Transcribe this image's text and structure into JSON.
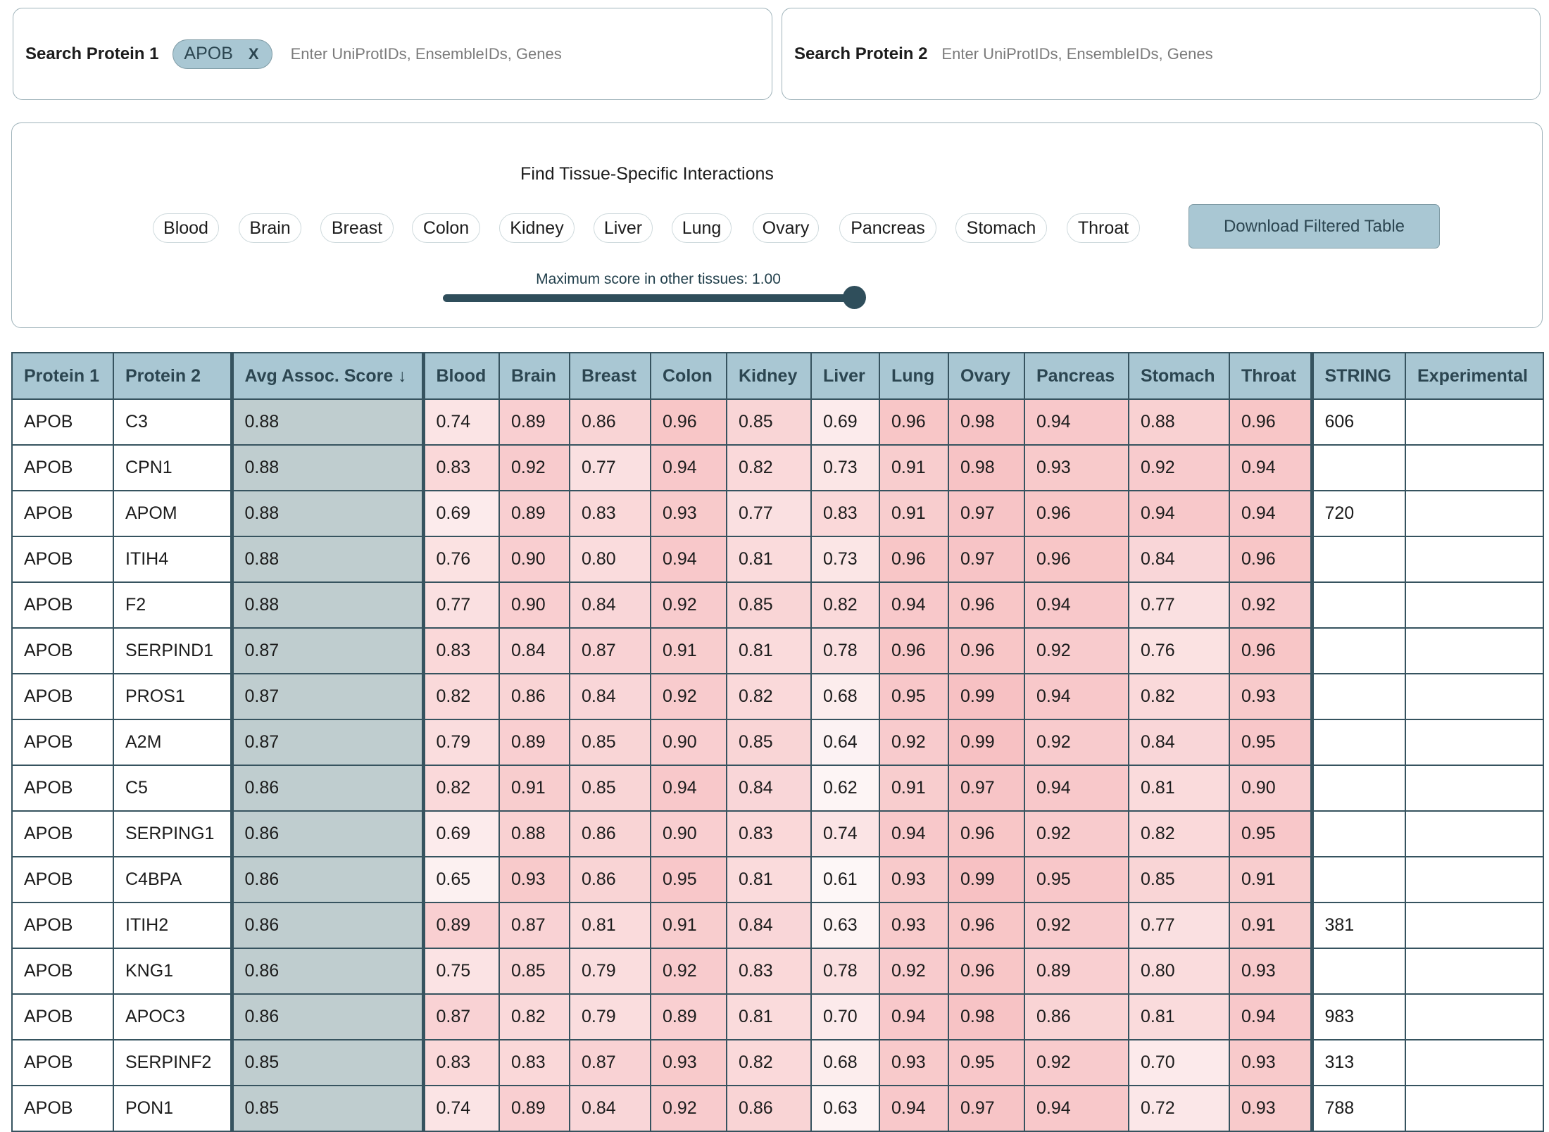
{
  "search1": {
    "label": "Search Protein 1",
    "chip": "APOB",
    "chip_remove": "X",
    "placeholder": "Enter UniProtIDs, EnsembleIDs, Genes",
    "value": ""
  },
  "search2": {
    "label": "Search Protein 2",
    "placeholder": "Enter UniProtIDs, EnsembleIDs, Genes",
    "value": ""
  },
  "filter": {
    "title": "Find Tissue-Specific Interactions",
    "tissues": [
      "Blood",
      "Brain",
      "Breast",
      "Colon",
      "Kidney",
      "Liver",
      "Lung",
      "Ovary",
      "Pancreas",
      "Stomach",
      "Throat"
    ],
    "download_label": "Download Filtered Table",
    "slider_label": "Maximum score in other tissues: 1.00",
    "slider_value": 1.0
  },
  "table": {
    "headers": [
      "Protein 1",
      "Protein 2",
      "Avg Assoc. Score ↓",
      "Blood",
      "Brain",
      "Breast",
      "Colon",
      "Kidney",
      "Liver",
      "Lung",
      "Ovary",
      "Pancreas",
      "Stomach",
      "Throat",
      "STRING",
      "Experimental"
    ],
    "rows": [
      [
        "APOB",
        "C3",
        "0.88",
        "0.74",
        "0.89",
        "0.86",
        "0.96",
        "0.85",
        "0.69",
        "0.96",
        "0.98",
        "0.94",
        "0.88",
        "0.96",
        "606",
        ""
      ],
      [
        "APOB",
        "CPN1",
        "0.88",
        "0.83",
        "0.92",
        "0.77",
        "0.94",
        "0.82",
        "0.73",
        "0.91",
        "0.98",
        "0.93",
        "0.92",
        "0.94",
        "",
        ""
      ],
      [
        "APOB",
        "APOM",
        "0.88",
        "0.69",
        "0.89",
        "0.83",
        "0.93",
        "0.77",
        "0.83",
        "0.91",
        "0.97",
        "0.96",
        "0.94",
        "0.94",
        "720",
        ""
      ],
      [
        "APOB",
        "ITIH4",
        "0.88",
        "0.76",
        "0.90",
        "0.80",
        "0.94",
        "0.81",
        "0.73",
        "0.96",
        "0.97",
        "0.96",
        "0.84",
        "0.96",
        "",
        ""
      ],
      [
        "APOB",
        "F2",
        "0.88",
        "0.77",
        "0.90",
        "0.84",
        "0.92",
        "0.85",
        "0.82",
        "0.94",
        "0.96",
        "0.94",
        "0.77",
        "0.92",
        "",
        ""
      ],
      [
        "APOB",
        "SERPIND1",
        "0.87",
        "0.83",
        "0.84",
        "0.87",
        "0.91",
        "0.81",
        "0.78",
        "0.96",
        "0.96",
        "0.92",
        "0.76",
        "0.96",
        "",
        ""
      ],
      [
        "APOB",
        "PROS1",
        "0.87",
        "0.82",
        "0.86",
        "0.84",
        "0.92",
        "0.82",
        "0.68",
        "0.95",
        "0.99",
        "0.94",
        "0.82",
        "0.93",
        "",
        ""
      ],
      [
        "APOB",
        "A2M",
        "0.87",
        "0.79",
        "0.89",
        "0.85",
        "0.90",
        "0.85",
        "0.64",
        "0.92",
        "0.99",
        "0.92",
        "0.84",
        "0.95",
        "",
        ""
      ],
      [
        "APOB",
        "C5",
        "0.86",
        "0.82",
        "0.91",
        "0.85",
        "0.94",
        "0.84",
        "0.62",
        "0.91",
        "0.97",
        "0.94",
        "0.81",
        "0.90",
        "",
        ""
      ],
      [
        "APOB",
        "SERPING1",
        "0.86",
        "0.69",
        "0.88",
        "0.86",
        "0.90",
        "0.83",
        "0.74",
        "0.94",
        "0.96",
        "0.92",
        "0.82",
        "0.95",
        "",
        ""
      ],
      [
        "APOB",
        "C4BPA",
        "0.86",
        "0.65",
        "0.93",
        "0.86",
        "0.95",
        "0.81",
        "0.61",
        "0.93",
        "0.99",
        "0.95",
        "0.85",
        "0.91",
        "",
        ""
      ],
      [
        "APOB",
        "ITIH2",
        "0.86",
        "0.89",
        "0.87",
        "0.81",
        "0.91",
        "0.84",
        "0.63",
        "0.93",
        "0.96",
        "0.92",
        "0.77",
        "0.91",
        "381",
        ""
      ],
      [
        "APOB",
        "KNG1",
        "0.86",
        "0.75",
        "0.85",
        "0.79",
        "0.92",
        "0.83",
        "0.78",
        "0.92",
        "0.96",
        "0.89",
        "0.80",
        "0.93",
        "",
        ""
      ],
      [
        "APOB",
        "APOC3",
        "0.86",
        "0.87",
        "0.82",
        "0.79",
        "0.89",
        "0.81",
        "0.70",
        "0.94",
        "0.98",
        "0.86",
        "0.81",
        "0.94",
        "983",
        ""
      ],
      [
        "APOB",
        "SERPINF2",
        "0.85",
        "0.83",
        "0.83",
        "0.87",
        "0.93",
        "0.82",
        "0.68",
        "0.93",
        "0.95",
        "0.92",
        "0.70",
        "0.93",
        "313",
        ""
      ],
      [
        "APOB",
        "PON1",
        "0.85",
        "0.74",
        "0.89",
        "0.84",
        "0.92",
        "0.86",
        "0.63",
        "0.94",
        "0.97",
        "0.94",
        "0.72",
        "0.93",
        "788",
        ""
      ]
    ]
  },
  "colors": {
    "header_bg": "#a9c7d3",
    "avg_bg": "#bfcdcf",
    "heat_low": "#fdf5f5",
    "heat_high": "#f7c2c4",
    "border": "#36535f"
  }
}
